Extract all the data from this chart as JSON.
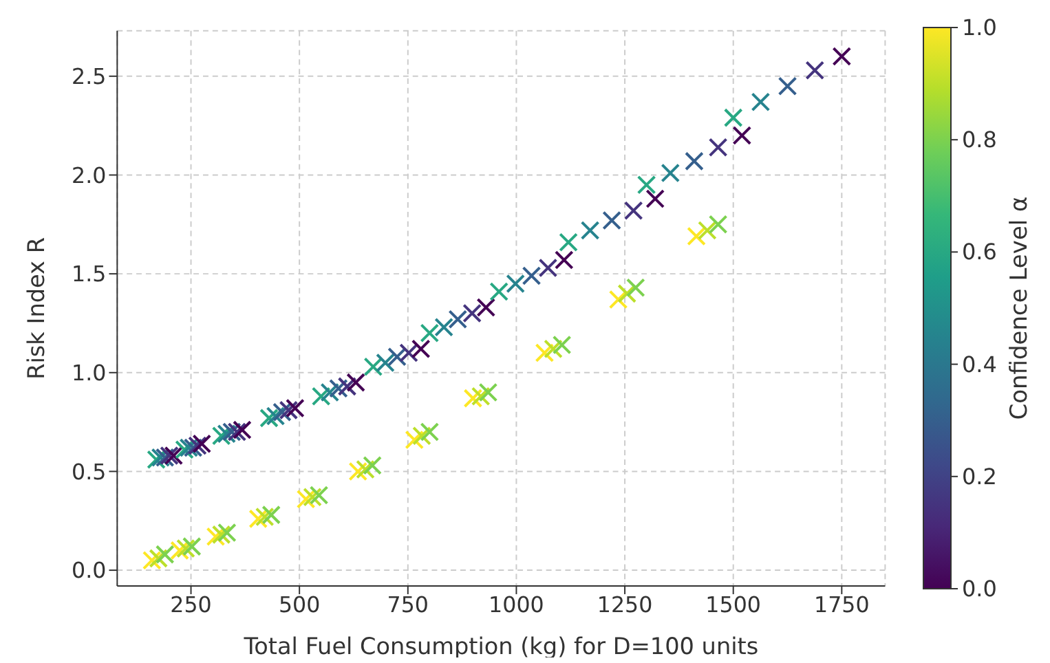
{
  "chart_data": {
    "type": "scatter",
    "xlabel": "Total Fuel Consumption (kg) for D=100 units",
    "ylabel": "Risk Index R",
    "clabel": "Confidence Level α",
    "marker": "cross",
    "grid": true,
    "xlim": [
      80,
      1850
    ],
    "xticks": [
      250,
      500,
      750,
      1000,
      1250,
      1500,
      1750
    ],
    "ylim": [
      -0.08,
      2.73
    ],
    "yticks": [
      {
        "value": 0,
        "label": "0.0"
      },
      {
        "value": 0.5,
        "label": "0.5"
      },
      {
        "value": 1,
        "label": "1.0"
      },
      {
        "value": 1.5,
        "label": "1.5"
      },
      {
        "value": 2,
        "label": "2.0"
      },
      {
        "value": 2.5,
        "label": "2.5"
      }
    ],
    "clim": [
      0,
      1
    ],
    "cticks": [
      {
        "value": 0,
        "label": "0.0"
      },
      {
        "value": 0.2,
        "label": "0.2"
      },
      {
        "value": 0.4,
        "label": "0.4"
      },
      {
        "value": 0.6,
        "label": "0.6"
      },
      {
        "value": 0.8,
        "label": "0.8"
      },
      {
        "value": 1,
        "label": "1.0"
      }
    ],
    "x": [
      160,
      175,
      190,
      224,
      238,
      252,
      307,
      320,
      333,
      405,
      420,
      435,
      515,
      530,
      545,
      635,
      652,
      668,
      765,
      782,
      800,
      900,
      918,
      935,
      1065,
      1085,
      1105,
      1235,
      1255,
      1275,
      1415,
      1440,
      1465,
      170,
      180,
      190,
      200,
      210,
      235,
      245,
      255,
      265,
      275,
      320,
      332,
      344,
      356,
      368,
      430,
      445,
      460,
      475,
      490,
      550,
      570,
      590,
      610,
      630,
      670,
      698,
      725,
      752,
      780,
      800,
      833,
      865,
      898,
      930,
      960,
      998,
      1035,
      1073,
      1110,
      1120,
      1170,
      1220,
      1270,
      1320,
      1300,
      1355,
      1410,
      1465,
      1520,
      1500,
      1563,
      1625,
      1688,
      1750
    ],
    "values": [
      0.05,
      0.06,
      0.08,
      0.1,
      0.11,
      0.12,
      0.17,
      0.18,
      0.19,
      0.26,
      0.27,
      0.28,
      0.36,
      0.37,
      0.38,
      0.5,
      0.51,
      0.53,
      0.66,
      0.68,
      0.7,
      0.87,
      0.88,
      0.9,
      1.1,
      1.12,
      1.14,
      1.37,
      1.4,
      1.43,
      1.69,
      1.72,
      1.75,
      0.56,
      0.57,
      0.57,
      0.58,
      0.58,
      0.61,
      0.62,
      0.62,
      0.63,
      0.64,
      0.68,
      0.69,
      0.7,
      0.7,
      0.71,
      0.77,
      0.78,
      0.8,
      0.81,
      0.82,
      0.88,
      0.9,
      0.92,
      0.93,
      0.95,
      1.03,
      1.05,
      1.08,
      1.1,
      1.12,
      1.2,
      1.23,
      1.27,
      1.3,
      1.33,
      1.41,
      1.45,
      1.49,
      1.53,
      1.57,
      1.66,
      1.72,
      1.77,
      1.82,
      1.88,
      1.95,
      2.01,
      2.07,
      2.14,
      2.2,
      2.29,
      2.37,
      2.45,
      2.53,
      2.6
    ],
    "cvalues": [
      1,
      0.9,
      0.8,
      1,
      0.9,
      0.8,
      1,
      0.9,
      0.8,
      1,
      0.9,
      0.8,
      1,
      0.9,
      0.8,
      1,
      0.9,
      0.8,
      1,
      0.9,
      0.8,
      1,
      0.9,
      0.8,
      1,
      0.9,
      0.8,
      1,
      0.9,
      0.8,
      1,
      0.9,
      0.8,
      0.6,
      0.45,
      0.3,
      0.15,
      0,
      0.6,
      0.45,
      0.3,
      0.15,
      0,
      0.6,
      0.45,
      0.3,
      0.15,
      0,
      0.6,
      0.45,
      0.3,
      0.15,
      0,
      0.6,
      0.45,
      0.3,
      0.15,
      0,
      0.6,
      0.45,
      0.3,
      0.15,
      0,
      0.6,
      0.45,
      0.3,
      0.15,
      0,
      0.6,
      0.45,
      0.3,
      0.15,
      0,
      0.6,
      0.45,
      0.3,
      0.15,
      0,
      0.6,
      0.45,
      0.3,
      0.15,
      0,
      0.6,
      0.45,
      0.3,
      0.15,
      0
    ]
  }
}
